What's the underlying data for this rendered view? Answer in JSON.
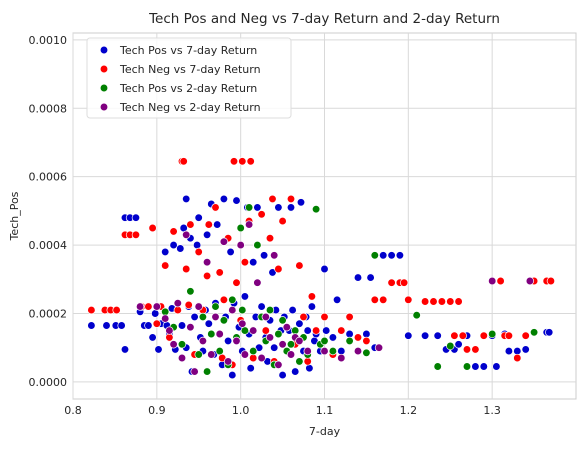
{
  "chart_data": {
    "type": "scatter",
    "title": "Tech Pos and Neg vs 7-day Return and 2-day Return",
    "xlabel": "7-day",
    "ylabel": "Tech_Pos",
    "xlim": [
      0.8,
      1.4
    ],
    "ylim": [
      -5e-05,
      0.00102
    ],
    "xticks": [
      0.8,
      0.9,
      1.0,
      1.1,
      1.2,
      1.3
    ],
    "xtick_labels": [
      "0.8",
      "0.9",
      "1.0",
      "1.1",
      "1.2",
      "1.3"
    ],
    "yticks": [
      0,
      0.0002,
      0.0004,
      0.0006,
      0.0008,
      0.001
    ],
    "ytick_labels": [
      "0.0000",
      "0.0002",
      "0.0004",
      "0.0006",
      "0.0008",
      "0.0010"
    ],
    "grid": true,
    "legend_position": "upper-left",
    "series": [
      {
        "name": "Tech Pos vs 7-day Return",
        "color": "#0000cc",
        "points": [
          [
            0.822,
            0.000165
          ],
          [
            0.84,
            0.000165
          ],
          [
            0.851,
            0.000165
          ],
          [
            0.858,
            0.000165
          ],
          [
            0.862,
            9.5e-05
          ],
          [
            0.862,
            0.00048
          ],
          [
            0.868,
            0.00048
          ],
          [
            0.875,
            0.00048
          ],
          [
            0.88,
            0.000205
          ],
          [
            0.885,
            0.000165
          ],
          [
            0.89,
            0.000165
          ],
          [
            0.895,
            0.00013
          ],
          [
            0.898,
            0.0002
          ],
          [
            0.902,
            9.5e-05
          ],
          [
            0.905,
            0.00017
          ],
          [
            0.91,
            0.00038
          ],
          [
            0.912,
            0.000165
          ],
          [
            0.915,
            0.00014
          ],
          [
            0.918,
            0.000215
          ],
          [
            0.92,
            0.0004
          ],
          [
            0.922,
            9.5e-05
          ],
          [
            0.925,
            0.00023
          ],
          [
            0.928,
            0.00039
          ],
          [
            0.93,
            0.000165
          ],
          [
            0.932,
            0.00045
          ],
          [
            0.935,
            0.000535
          ],
          [
            0.935,
            0.0001
          ],
          [
            0.938,
            0.00022
          ],
          [
            0.94,
            0.00042
          ],
          [
            0.942,
            3e-05
          ],
          [
            0.945,
            0.00019
          ],
          [
            0.948,
            0.0004
          ],
          [
            0.95,
            0.00048
          ],
          [
            0.952,
            0.00013
          ],
          [
            0.955,
            9e-05
          ],
          [
            0.958,
            0.00021
          ],
          [
            0.96,
            0.00043
          ],
          [
            0.962,
            0.00017
          ],
          [
            0.965,
            0.00052
          ],
          [
            0.968,
            8e-05
          ],
          [
            0.97,
            0.00023
          ],
          [
            0.972,
            0.00046
          ],
          [
            0.975,
            0.00014
          ],
          [
            0.978,
            5e-05
          ],
          [
            0.98,
            0.000535
          ],
          [
            0.982,
            0.00019
          ],
          [
            0.985,
            0.00012
          ],
          [
            0.988,
            0.00038
          ],
          [
            0.99,
            2e-05
          ],
          [
            0.992,
            0.00023
          ],
          [
            0.995,
            0.00053
          ],
          [
            0.998,
            0.00016
          ],
          [
            1.0,
            0.0004
          ],
          [
            1.002,
            9e-05
          ],
          [
            1.005,
            0.00025
          ],
          [
            1.008,
            0.00051
          ],
          [
            1.01,
            0.00014
          ],
          [
            1.012,
            4e-05
          ],
          [
            1.015,
            0.00035
          ],
          [
            1.018,
            0.00019
          ],
          [
            1.02,
            0.00051
          ],
          [
            1.022,
            0.0001
          ],
          [
            1.025,
            0.00022
          ],
          [
            1.028,
            0.00037
          ],
          [
            1.03,
            0.00013
          ],
          [
            1.032,
            6e-05
          ],
          [
            1.035,
            0.00018
          ],
          [
            1.038,
            0.00032
          ],
          [
            1.04,
            0.0001
          ],
          [
            1.042,
            0.00021
          ],
          [
            1.045,
            0.00051
          ],
          [
            1.048,
            0.00015
          ],
          [
            1.05,
            2e-05
          ],
          [
            1.052,
            0.00019
          ],
          [
            1.055,
            9e-05
          ],
          [
            1.058,
            0.00015
          ],
          [
            1.06,
            0.00051
          ],
          [
            1.062,
            0.00021
          ],
          [
            1.065,
            3e-05
          ],
          [
            1.068,
            0.00012
          ],
          [
            1.07,
            0.00017
          ],
          [
            1.072,
            0.000525
          ],
          [
            1.075,
            9e-05
          ],
          [
            1.078,
            0.00019
          ],
          [
            1.08,
            0.00015
          ],
          [
            1.082,
            4e-05
          ],
          [
            1.085,
            0.00022
          ],
          [
            1.088,
            0.00012
          ],
          [
            1.09,
            0.00014
          ],
          [
            1.095,
            9e-05
          ],
          [
            1.1,
            0.00033
          ],
          [
            1.102,
            0.00015
          ],
          [
            1.11,
            0.00013
          ],
          [
            1.115,
            0.00024
          ],
          [
            1.12,
            9e-05
          ],
          [
            1.13,
            0.00014
          ],
          [
            1.14,
            0.000305
          ],
          [
            1.15,
            0.00014
          ],
          [
            1.155,
            0.000305
          ],
          [
            1.16,
            0.0001
          ],
          [
            1.17,
            0.00037
          ],
          [
            1.18,
            0.00037
          ],
          [
            1.19,
            0.00037
          ],
          [
            1.2,
            0.000135
          ],
          [
            1.22,
            0.000135
          ],
          [
            1.235,
            0.000135
          ],
          [
            1.245,
            9.5e-05
          ],
          [
            1.255,
            9.5e-05
          ],
          [
            1.26,
            0.00011
          ],
          [
            1.27,
            0.000135
          ],
          [
            1.28,
            4.5e-05
          ],
          [
            1.29,
            4.5e-05
          ],
          [
            1.3,
            0.000135
          ],
          [
            1.305,
            4.5e-05
          ],
          [
            1.315,
            0.00014
          ],
          [
            1.32,
            9e-05
          ],
          [
            1.33,
            9e-05
          ],
          [
            1.34,
            9.5e-05
          ],
          [
            1.365,
            0.000145
          ],
          [
            1.368,
            0.000145
          ]
        ]
      },
      {
        "name": "Tech Neg vs 7-day Return",
        "color": "#ff0000",
        "points": [
          [
            0.822,
            0.00021
          ],
          [
            0.838,
            0.00021
          ],
          [
            0.845,
            0.00021
          ],
          [
            0.852,
            0.00021
          ],
          [
            0.862,
            0.00043
          ],
          [
            0.868,
            0.00043
          ],
          [
            0.875,
            0.00043
          ],
          [
            0.882,
            0.00022
          ],
          [
            0.89,
            0.00022
          ],
          [
            0.895,
            0.00045
          ],
          [
            0.9,
            0.00017
          ],
          [
            0.905,
            0.00022
          ],
          [
            0.91,
            0.00034
          ],
          [
            0.915,
            0.00013
          ],
          [
            0.92,
            0.00044
          ],
          [
            0.925,
            0.00021
          ],
          [
            0.93,
            0.000645
          ],
          [
            0.932,
            0.000645
          ],
          [
            0.935,
            0.00033
          ],
          [
            0.938,
            0.000225
          ],
          [
            0.94,
            0.00046
          ],
          [
            0.945,
            8e-05
          ],
          [
            0.95,
            0.00038
          ],
          [
            0.955,
            0.00021
          ],
          [
            0.96,
            0.00031
          ],
          [
            0.962,
            0.00046
          ],
          [
            0.965,
            0.00014
          ],
          [
            0.97,
            0.00051
          ],
          [
            0.975,
            0.00032
          ],
          [
            0.978,
            7e-05
          ],
          [
            0.98,
            0.00024
          ],
          [
            0.985,
            0.00042
          ],
          [
            0.99,
            5e-05
          ],
          [
            0.992,
            0.000645
          ],
          [
            0.995,
            0.00029
          ],
          [
            1.0,
            0.00018
          ],
          [
            1.002,
            0.000645
          ],
          [
            1.005,
            0.00035
          ],
          [
            1.01,
            0.00047
          ],
          [
            1.012,
            0.000645
          ],
          [
            1.015,
            7e-05
          ],
          [
            1.02,
            0.00029
          ],
          [
            1.025,
            0.00049
          ],
          [
            1.03,
            0.00015
          ],
          [
            1.035,
            0.00042
          ],
          [
            1.038,
            0.000535
          ],
          [
            1.04,
            6e-05
          ],
          [
            1.045,
            0.00033
          ],
          [
            1.05,
            0.00047
          ],
          [
            1.055,
            0.00016
          ],
          [
            1.06,
            0.000535
          ],
          [
            1.065,
            0.00011
          ],
          [
            1.07,
            0.00034
          ],
          [
            1.075,
            0.00019
          ],
          [
            1.08,
            6e-05
          ],
          [
            1.085,
            0.00025
          ],
          [
            1.09,
            0.00015
          ],
          [
            1.1,
            0.00019
          ],
          [
            1.11,
            8e-05
          ],
          [
            1.12,
            0.00015
          ],
          [
            1.13,
            0.00019
          ],
          [
            1.14,
            0.00013
          ],
          [
            1.15,
            0.00012
          ],
          [
            1.16,
            0.00024
          ],
          [
            1.17,
            0.00024
          ],
          [
            1.18,
            0.00029
          ],
          [
            1.19,
            0.00029
          ],
          [
            1.195,
            0.00029
          ],
          [
            1.2,
            0.00024
          ],
          [
            1.22,
            0.000235
          ],
          [
            1.23,
            0.000235
          ],
          [
            1.24,
            0.000235
          ],
          [
            1.25,
            0.000235
          ],
          [
            1.26,
            0.000235
          ],
          [
            1.255,
            0.000135
          ],
          [
            1.265,
            0.000135
          ],
          [
            1.27,
            9.5e-05
          ],
          [
            1.28,
            9.5e-05
          ],
          [
            1.29,
            0.000135
          ],
          [
            1.3,
            0.000295
          ],
          [
            1.31,
            0.000295
          ],
          [
            1.315,
            0.000135
          ],
          [
            1.32,
            0.000135
          ],
          [
            1.33,
            7e-05
          ],
          [
            1.34,
            0.000135
          ],
          [
            1.35,
            0.000295
          ],
          [
            1.365,
            0.000295
          ],
          [
            1.37,
            0.000295
          ]
        ]
      },
      {
        "name": "Tech Pos vs 2-day Return",
        "color": "#008000",
        "points": [
          [
            0.91,
            0.000205
          ],
          [
            0.92,
            0.00016
          ],
          [
            0.93,
            0.00011
          ],
          [
            0.94,
            0.000265
          ],
          [
            0.95,
            8e-05
          ],
          [
            0.955,
            0.00019
          ],
          [
            0.96,
            3e-05
          ],
          [
            0.965,
            0.00014
          ],
          [
            0.97,
            0.00022
          ],
          [
            0.975,
            9e-05
          ],
          [
            0.98,
            0.00018
          ],
          [
            0.985,
            5e-05
          ],
          [
            0.99,
            0.00024
          ],
          [
            0.995,
            0.00013
          ],
          [
            1.0,
            0.00045
          ],
          [
            1.002,
            0.00021
          ],
          [
            1.005,
            0.00015
          ],
          [
            1.01,
            0.00051
          ],
          [
            1.015,
            9e-05
          ],
          [
            1.02,
            0.0004
          ],
          [
            1.025,
            0.00019
          ],
          [
            1.03,
            0.00012
          ],
          [
            1.035,
            0.00021
          ],
          [
            1.04,
            5e-05
          ],
          [
            1.045,
            0.00014
          ],
          [
            1.05,
            0.00018
          ],
          [
            1.055,
            9e-05
          ],
          [
            1.06,
            0.00011
          ],
          [
            1.065,
            0.00015
          ],
          [
            1.07,
            6e-05
          ],
          [
            1.075,
            0.00013
          ],
          [
            1.08,
            8e-05
          ],
          [
            1.09,
            0.000505
          ],
          [
            1.095,
            0.00011
          ],
          [
            1.1,
            0.00012
          ],
          [
            1.11,
            9e-05
          ],
          [
            1.13,
            0.00012
          ],
          [
            1.15,
            8.5e-05
          ],
          [
            1.16,
            0.00037
          ],
          [
            1.21,
            0.000195
          ],
          [
            1.235,
            4.5e-05
          ],
          [
            1.25,
            0.000105
          ],
          [
            1.27,
            4.5e-05
          ],
          [
            1.3,
            0.00014
          ],
          [
            1.35,
            0.000145
          ]
        ]
      },
      {
        "name": "Tech Neg vs 2-day Return",
        "color": "#800080",
        "points": [
          [
            0.88,
            0.00022
          ],
          [
            0.9,
            0.00022
          ],
          [
            0.91,
            0.000185
          ],
          [
            0.915,
            0.00015
          ],
          [
            0.92,
            0.00011
          ],
          [
            0.925,
            0.00023
          ],
          [
            0.93,
            7e-05
          ],
          [
            0.935,
            0.00043
          ],
          [
            0.94,
            0.00016
          ],
          [
            0.945,
            3e-05
          ],
          [
            0.95,
            0.00022
          ],
          [
            0.955,
            0.00012
          ],
          [
            0.96,
            0.00035
          ],
          [
            0.965,
            8e-05
          ],
          [
            0.97,
            0.00019
          ],
          [
            0.975,
            0.00014
          ],
          [
            0.98,
            0.00041
          ],
          [
            0.985,
            6e-05
          ],
          [
            0.99,
            0.00021
          ],
          [
            0.995,
            0.00012
          ],
          [
            1.0,
            0.0004
          ],
          [
            1.002,
            0.00017
          ],
          [
            1.005,
            8e-05
          ],
          [
            1.01,
            0.00046
          ],
          [
            1.015,
            0.00015
          ],
          [
            1.02,
            0.00029
          ],
          [
            1.025,
            7e-05
          ],
          [
            1.03,
            0.00019
          ],
          [
            1.035,
            0.00013
          ],
          [
            1.04,
            0.00037
          ],
          [
            1.045,
            5e-05
          ],
          [
            1.05,
            0.00011
          ],
          [
            1.055,
            0.00016
          ],
          [
            1.06,
            8e-05
          ],
          [
            1.065,
            0.00013
          ],
          [
            1.07,
            0.00012
          ],
          [
            1.08,
            9e-05
          ],
          [
            1.1,
            9e-05
          ],
          [
            1.12,
            7e-05
          ],
          [
            1.14,
            9e-05
          ],
          [
            1.165,
            0.0001
          ],
          [
            1.3,
            0.000295
          ],
          [
            1.345,
            0.000295
          ]
        ]
      }
    ]
  }
}
